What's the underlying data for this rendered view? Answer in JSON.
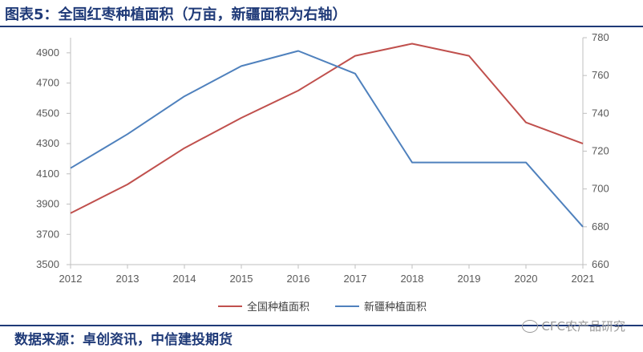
{
  "title": "图表5：全国红枣种植面积（万亩，新疆面积为右轴）",
  "source": "数据来源：卓创资讯，中信建投期货",
  "watermark": "CFC农产品研究",
  "chart_data": {
    "type": "line",
    "x": [
      "2012",
      "2013",
      "2014",
      "2015",
      "2016",
      "2017",
      "2018",
      "2019",
      "2020",
      "2021"
    ],
    "series": [
      {
        "name": "全国种植面积",
        "axis": "left",
        "color": "#c0504d",
        "values": [
          3840,
          4030,
          4270,
          4470,
          4650,
          4880,
          4960,
          4880,
          4440,
          4300
        ]
      },
      {
        "name": "新疆种植面积",
        "axis": "right",
        "color": "#4f81bd",
        "values": [
          711,
          729,
          749,
          765,
          773,
          761,
          714,
          714,
          714,
          680
        ]
      }
    ],
    "y_left": {
      "min": 3500,
      "max": 5000,
      "ticks": [
        3500,
        3700,
        3900,
        4100,
        4300,
        4500,
        4700,
        4900
      ]
    },
    "y_right": {
      "min": 660,
      "max": 780,
      "ticks": [
        660,
        680,
        700,
        720,
        740,
        760,
        780
      ]
    },
    "grid": false,
    "legend_position": "bottom"
  }
}
